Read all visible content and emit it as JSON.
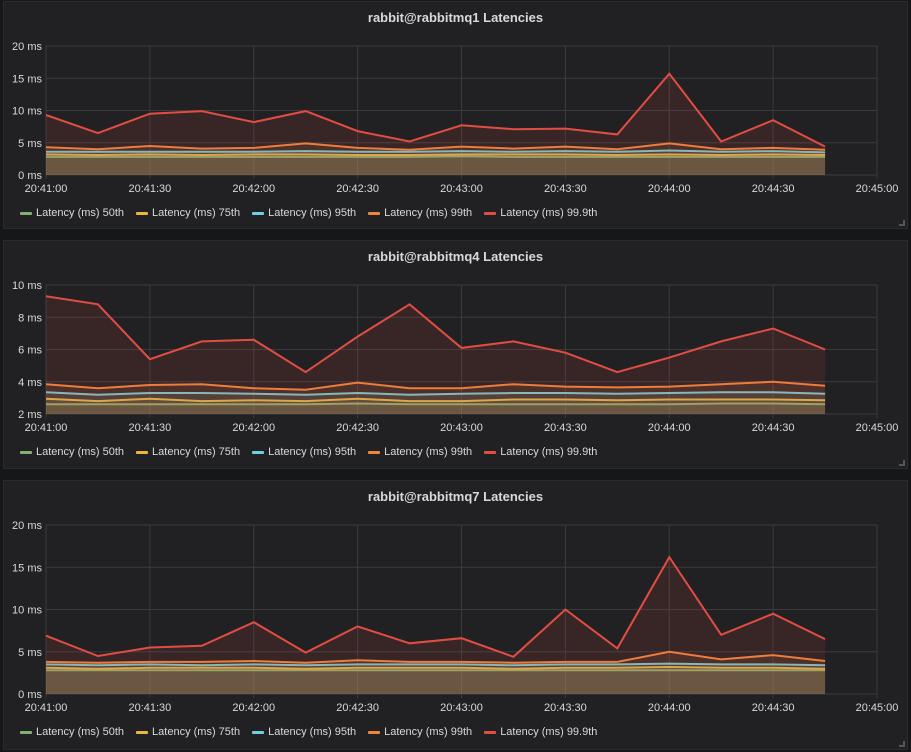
{
  "series_colors": {
    "50th": "#7eb26d",
    "75th": "#eab839",
    "95th": "#6ed0e0",
    "99th": "#ef843c",
    "99.9th": "#e24d42"
  },
  "chart_data": [
    {
      "type": "area",
      "title": "rabbit@rabbitmq1 Latencies",
      "x": [
        "20:41:00",
        "20:41:15",
        "20:41:30",
        "20:41:45",
        "20:42:00",
        "20:42:15",
        "20:42:30",
        "20:42:45",
        "20:43:00",
        "20:43:15",
        "20:43:30",
        "20:43:45",
        "20:44:00",
        "20:44:15",
        "20:44:30",
        "20:44:45"
      ],
      "x_ticks": [
        "20:41:00",
        "20:41:30",
        "20:42:00",
        "20:42:30",
        "20:43:00",
        "20:43:30",
        "20:44:00",
        "20:44:30",
        "20:45:00"
      ],
      "y_ticks": [
        "0 ms",
        "5 ms",
        "10 ms",
        "15 ms",
        "20 ms"
      ],
      "ylim": [
        0,
        20
      ],
      "grid": true,
      "legend": "bottom",
      "series": [
        {
          "name": "Latency (ms) 50th",
          "key": "50th",
          "values": [
            2.8,
            2.8,
            2.8,
            2.8,
            2.8,
            2.8,
            2.8,
            2.8,
            2.9,
            2.8,
            2.8,
            2.8,
            2.8,
            2.8,
            2.8,
            2.8
          ]
        },
        {
          "name": "Latency (ms) 75th",
          "key": "75th",
          "values": [
            3.2,
            3.1,
            3.2,
            3.1,
            3.2,
            3.2,
            3.1,
            3.1,
            3.2,
            3.2,
            3.2,
            3.1,
            3.2,
            3.1,
            3.2,
            3.1
          ]
        },
        {
          "name": "Latency (ms) 95th",
          "key": "95th",
          "values": [
            3.6,
            3.6,
            3.6,
            3.6,
            3.6,
            3.7,
            3.6,
            3.6,
            3.7,
            3.6,
            3.7,
            3.6,
            3.8,
            3.6,
            3.7,
            3.5
          ]
        },
        {
          "name": "Latency (ms) 99th",
          "key": "99th",
          "values": [
            4.3,
            4.0,
            4.5,
            4.1,
            4.2,
            4.9,
            4.2,
            3.9,
            4.4,
            4.1,
            4.4,
            4.0,
            4.9,
            4.0,
            4.2,
            3.9
          ]
        },
        {
          "name": "Latency (ms) 99.9th",
          "key": "99.9th",
          "values": [
            9.3,
            6.5,
            9.5,
            9.9,
            8.2,
            9.9,
            6.8,
            5.2,
            7.7,
            7.1,
            7.2,
            6.3,
            15.7,
            5.2,
            8.5,
            4.4
          ]
        }
      ]
    },
    {
      "type": "area",
      "title": "rabbit@rabbitmq4 Latencies",
      "x": [
        "20:41:00",
        "20:41:15",
        "20:41:30",
        "20:41:45",
        "20:42:00",
        "20:42:15",
        "20:42:30",
        "20:42:45",
        "20:43:00",
        "20:43:15",
        "20:43:30",
        "20:43:45",
        "20:44:00",
        "20:44:15",
        "20:44:30",
        "20:44:45"
      ],
      "x_ticks": [
        "20:41:00",
        "20:41:30",
        "20:42:00",
        "20:42:30",
        "20:43:00",
        "20:43:30",
        "20:44:00",
        "20:44:30",
        "20:45:00"
      ],
      "y_ticks": [
        "2 ms",
        "4 ms",
        "6 ms",
        "8 ms",
        "10 ms"
      ],
      "ylim": [
        2,
        10
      ],
      "grid": true,
      "legend": "bottom",
      "series": [
        {
          "name": "Latency (ms) 50th",
          "key": "50th",
          "values": [
            2.6,
            2.6,
            2.6,
            2.6,
            2.6,
            2.6,
            2.65,
            2.6,
            2.6,
            2.6,
            2.6,
            2.6,
            2.6,
            2.65,
            2.65,
            2.6
          ]
        },
        {
          "name": "Latency (ms) 75th",
          "key": "75th",
          "values": [
            2.95,
            2.8,
            2.95,
            2.8,
            2.85,
            2.8,
            2.95,
            2.8,
            2.8,
            2.9,
            2.9,
            2.85,
            2.9,
            2.9,
            2.9,
            2.85
          ]
        },
        {
          "name": "Latency (ms) 95th",
          "key": "95th",
          "values": [
            3.35,
            3.2,
            3.3,
            3.3,
            3.25,
            3.2,
            3.3,
            3.2,
            3.25,
            3.3,
            3.3,
            3.25,
            3.3,
            3.35,
            3.35,
            3.25
          ]
        },
        {
          "name": "Latency (ms) 99th",
          "key": "99th",
          "values": [
            3.85,
            3.6,
            3.8,
            3.85,
            3.6,
            3.5,
            3.95,
            3.6,
            3.6,
            3.85,
            3.7,
            3.65,
            3.7,
            3.85,
            4.0,
            3.75
          ]
        },
        {
          "name": "Latency (ms) 99.9th",
          "key": "99.9th",
          "values": [
            9.3,
            8.8,
            5.4,
            6.5,
            6.6,
            4.6,
            6.8,
            8.8,
            6.1,
            6.5,
            5.8,
            4.6,
            5.5,
            6.5,
            7.3,
            6.0
          ]
        }
      ]
    },
    {
      "type": "area",
      "title": "rabbit@rabbitmq7 Latencies",
      "x": [
        "20:41:00",
        "20:41:15",
        "20:41:30",
        "20:41:45",
        "20:42:00",
        "20:42:15",
        "20:42:30",
        "20:42:45",
        "20:43:00",
        "20:43:15",
        "20:43:30",
        "20:43:45",
        "20:44:00",
        "20:44:15",
        "20:44:30",
        "20:44:45"
      ],
      "x_ticks": [
        "20:41:00",
        "20:41:30",
        "20:42:00",
        "20:42:30",
        "20:43:00",
        "20:43:30",
        "20:44:00",
        "20:44:30",
        "20:45:00"
      ],
      "y_ticks": [
        "0 ms",
        "5 ms",
        "10 ms",
        "15 ms",
        "20 ms"
      ],
      "ylim": [
        0,
        20
      ],
      "grid": true,
      "legend": "bottom",
      "series": [
        {
          "name": "Latency (ms) 50th",
          "key": "50th",
          "values": [
            2.8,
            2.8,
            2.8,
            2.8,
            2.8,
            2.8,
            2.8,
            2.8,
            2.8,
            2.8,
            2.8,
            2.8,
            2.8,
            2.8,
            2.8,
            2.8
          ]
        },
        {
          "name": "Latency (ms) 75th",
          "key": "75th",
          "values": [
            3.1,
            3.0,
            3.1,
            3.1,
            3.1,
            3.0,
            3.1,
            3.1,
            3.1,
            3.0,
            3.1,
            3.1,
            3.2,
            3.1,
            3.1,
            3.0
          ]
        },
        {
          "name": "Latency (ms) 95th",
          "key": "95th",
          "values": [
            3.5,
            3.4,
            3.5,
            3.4,
            3.5,
            3.4,
            3.5,
            3.5,
            3.5,
            3.4,
            3.5,
            3.5,
            3.6,
            3.5,
            3.5,
            3.4
          ]
        },
        {
          "name": "Latency (ms) 99th",
          "key": "99th",
          "values": [
            3.8,
            3.7,
            3.8,
            3.8,
            3.9,
            3.7,
            4.0,
            3.8,
            3.8,
            3.7,
            3.8,
            3.8,
            5.0,
            4.1,
            4.6,
            3.9
          ]
        },
        {
          "name": "Latency (ms) 99.9th",
          "key": "99.9th",
          "values": [
            6.9,
            4.5,
            5.5,
            5.7,
            8.5,
            4.9,
            8.0,
            6.0,
            6.6,
            4.4,
            10.0,
            5.4,
            16.2,
            7.0,
            9.5,
            6.5
          ]
        }
      ]
    }
  ]
}
